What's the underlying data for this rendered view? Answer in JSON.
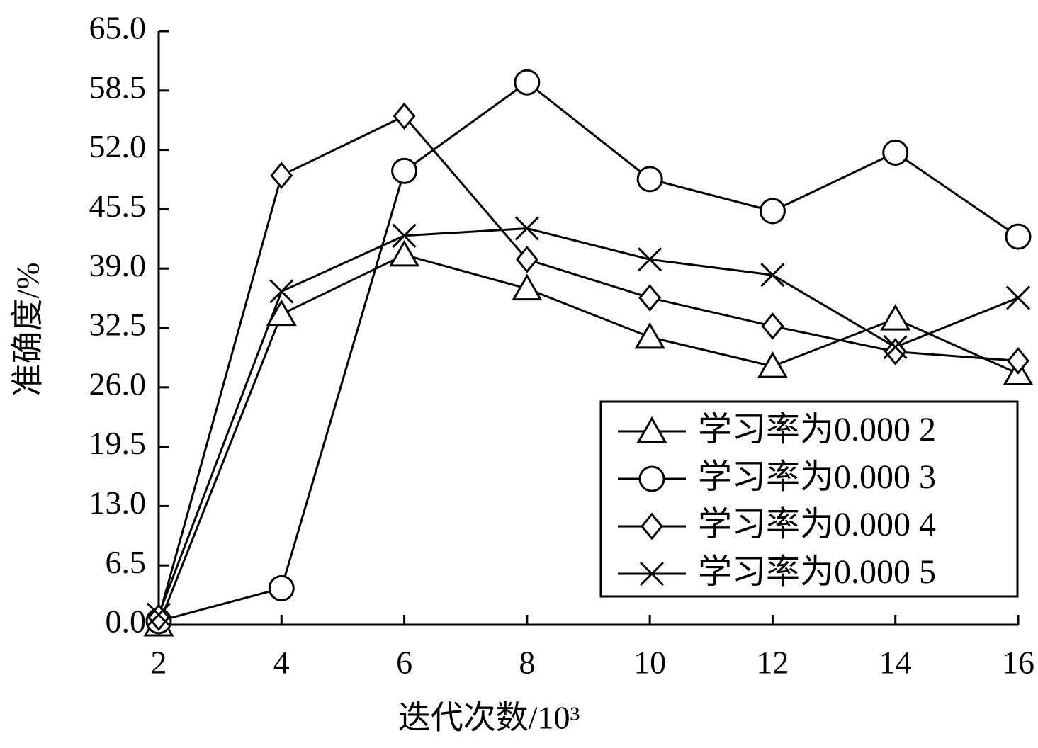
{
  "chart_data": {
    "type": "line",
    "x_label": "迭代次数/10³",
    "y_label": "准确度/%",
    "x": [
      2,
      4,
      6,
      8,
      10,
      12,
      14,
      16
    ],
    "xlim": [
      2,
      16
    ],
    "xticks": [
      2,
      4,
      6,
      8,
      10,
      12,
      14,
      16
    ],
    "ylim": [
      0,
      65
    ],
    "yticks": [
      {
        "value": 0,
        "label": "0.0"
      },
      6.5,
      {
        "value": 13,
        "label": "13.0"
      },
      19.5,
      {
        "value": 26,
        "label": "26.0"
      },
      32.5,
      {
        "value": 39,
        "label": "39.0"
      },
      45.5,
      {
        "value": 52,
        "label": "52.0"
      },
      58.5,
      {
        "value": 65,
        "label": "65.0"
      }
    ],
    "legend": "lower right",
    "series": [
      {
        "name": "学习率为0.000 2",
        "marker": "triangle",
        "color": "#000000",
        "values": [
          0,
          34.0,
          40.5,
          36.8,
          31.5,
          28.3,
          33.5,
          27.5
        ]
      },
      {
        "name": "学习率为0.000 3",
        "marker": "circle",
        "color": "#000000",
        "values": [
          0.4,
          4.0,
          49.7,
          59.4,
          48.8,
          45.3,
          51.7,
          42.5
        ]
      },
      {
        "name": "学习率为0.000 4",
        "marker": "diamond",
        "color": "#000000",
        "values": [
          0.8,
          49.2,
          55.7,
          40.0,
          35.8,
          32.7,
          29.9,
          28.9
        ]
      },
      {
        "name": "学习率为0.000 5",
        "marker": "x",
        "color": "#000000",
        "values": [
          1.1,
          36.5,
          42.6,
          43.4,
          40.0,
          38.3,
          30.4,
          35.8
        ]
      }
    ]
  }
}
